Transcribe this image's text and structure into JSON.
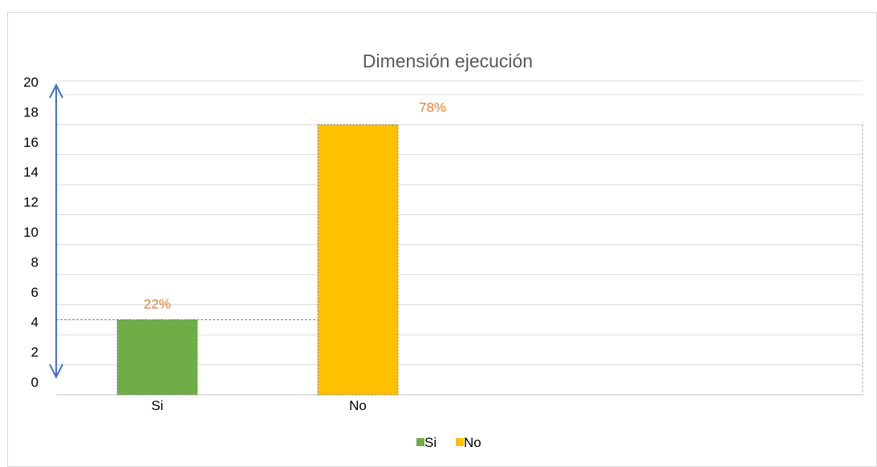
{
  "chart_data": {
    "type": "bar",
    "title": "Dimensión ejecución",
    "categories": [
      "Si",
      "No"
    ],
    "series": [
      {
        "name": "Si",
        "values": [
          5,
          null
        ],
        "labels": [
          "22%",
          ""
        ]
      },
      {
        "name": "No",
        "values": [
          null,
          18
        ],
        "labels": [
          "",
          "78%"
        ]
      }
    ],
    "yticks": [
      "0",
      "2",
      "4",
      "6",
      "8",
      "10",
      "12",
      "14",
      "16",
      "18",
      "20"
    ],
    "ylim": [
      0,
      20
    ],
    "grid": true,
    "legend_position": "bottom",
    "colors": {
      "Si": "#70AD47",
      "No": "#FFC000",
      "label": "#ED7D31",
      "arrow": "#4472C4"
    }
  }
}
